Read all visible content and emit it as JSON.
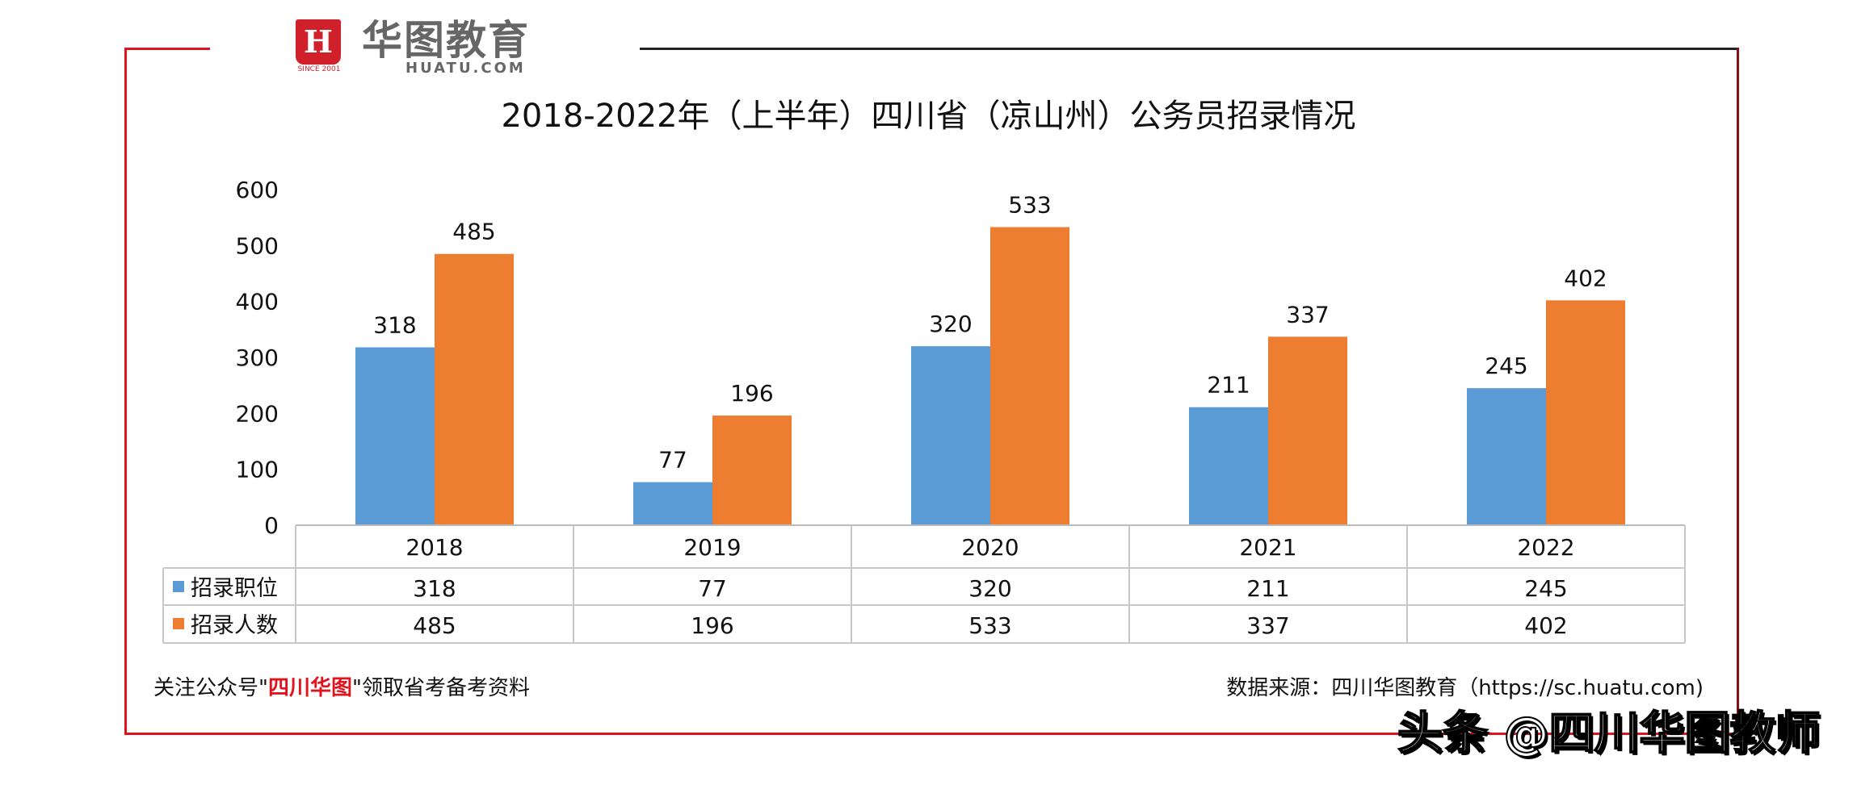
{
  "logo": {
    "mark": "H",
    "since": "SINCE 2001",
    "cn": "华图教育",
    "en": "HUATU.COM"
  },
  "chart_data": {
    "type": "bar",
    "title": "2018-2022年（上半年）四川省（凉山州）公务员招录情况",
    "categories": [
      "2018",
      "2019",
      "2020",
      "2021",
      "2022"
    ],
    "series": [
      {
        "name": "招录职位",
        "values": [
          318,
          77,
          320,
          211,
          245
        ],
        "color": "#5b9bd5"
      },
      {
        "name": "招录人数",
        "values": [
          485,
          196,
          533,
          337,
          402
        ],
        "color": "#ed7d31"
      }
    ],
    "ylim": [
      0,
      600
    ],
    "yticks": [
      "0",
      "100",
      "200",
      "300",
      "400",
      "500",
      "600"
    ],
    "grid": false,
    "legend": "data-table",
    "data_table": true
  },
  "footer": {
    "left_pre": "关注公众号\"",
    "left_red": "四川华图",
    "left_post": "\"领取省考备考资料",
    "right": "数据来源：四川华图教育（https://sc.huatu.com)"
  },
  "watermark": "头条 @四川华图教师",
  "colors": {
    "frame_red": "#e0141e",
    "frame_dark": "#7a0d12"
  }
}
